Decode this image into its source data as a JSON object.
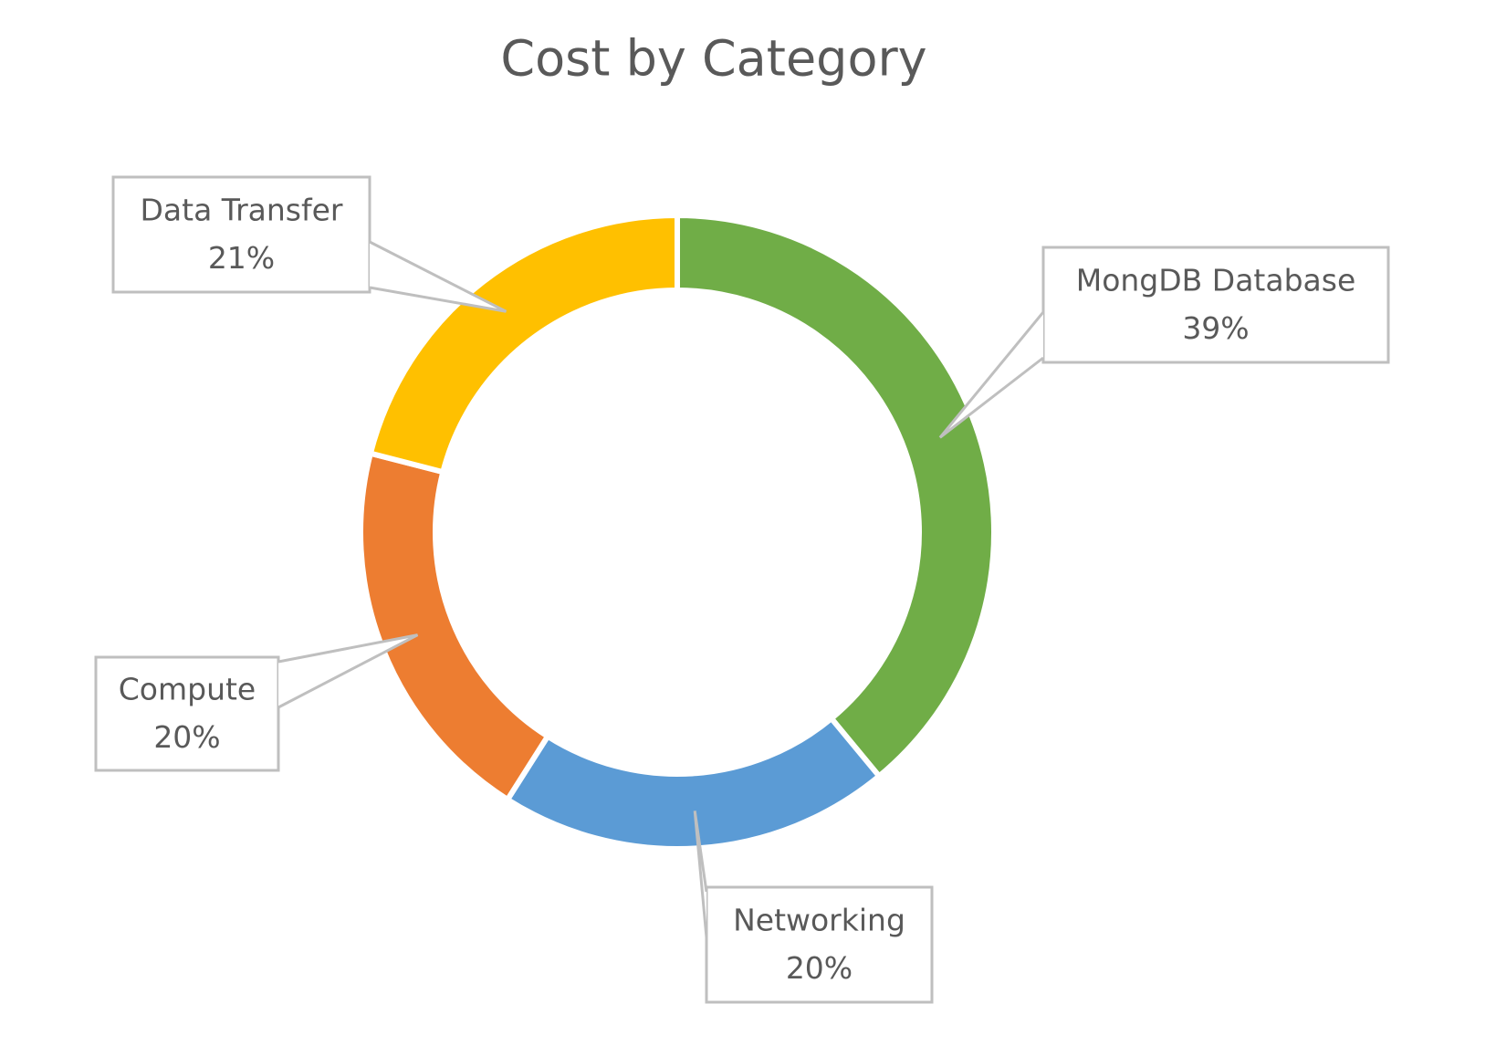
{
  "chart_data": {
    "type": "donut",
    "title": "Cost by Category",
    "categories": [
      "MongDB Database",
      "Networking",
      "Compute",
      "Data Transfer"
    ],
    "values": [
      39,
      20,
      20,
      21
    ],
    "value_labels": [
      "39%",
      "20%",
      "20%",
      "21%"
    ],
    "colors": [
      "#70ad47",
      "#5b9bd5",
      "#ed7d31",
      "#ffc000"
    ]
  }
}
